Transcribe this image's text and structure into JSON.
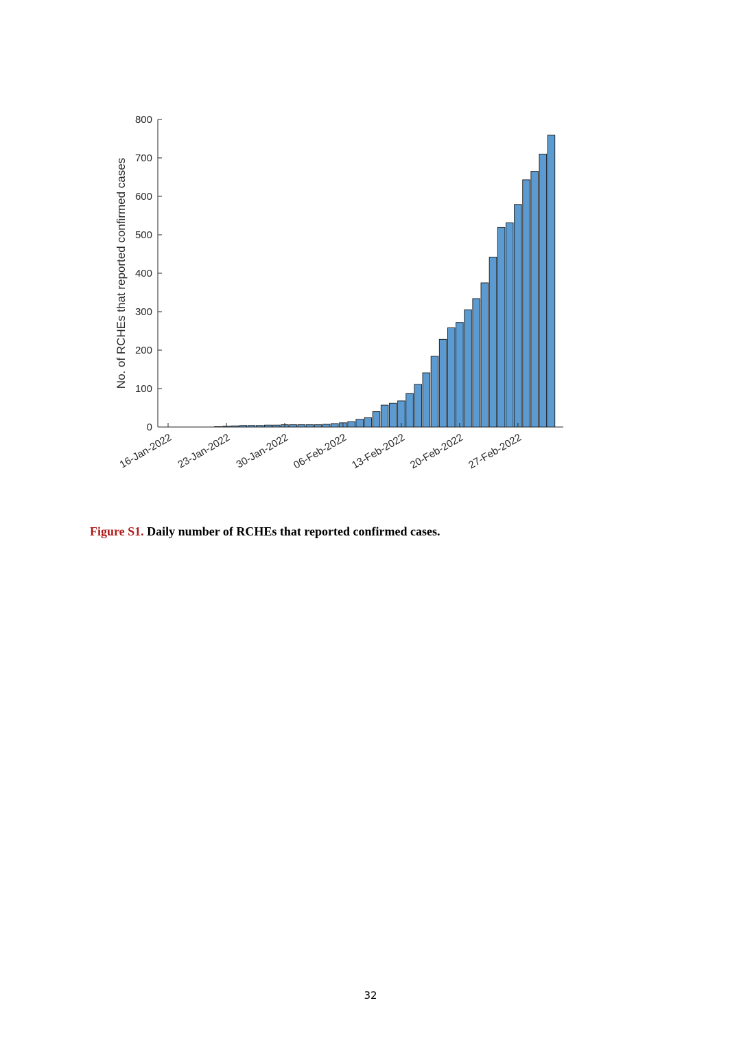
{
  "chart_data": {
    "type": "bar",
    "ylabel": "No. of RCHEs that reported confirmed cases",
    "categories": [
      "16-Jan-2022",
      null,
      null,
      null,
      null,
      null,
      null,
      "23-Jan-2022",
      null,
      null,
      null,
      null,
      null,
      null,
      "30-Jan-2022",
      null,
      null,
      null,
      null,
      null,
      null,
      "06-Feb-2022",
      null,
      null,
      null,
      null,
      null,
      null,
      "13-Feb-2022",
      null,
      null,
      null,
      null,
      null,
      null,
      "20-Feb-2022",
      null,
      null,
      null,
      null,
      null,
      null,
      "27-Feb-2022",
      null,
      null,
      null,
      null
    ],
    "values": [
      0,
      0,
      0,
      0,
      0,
      0,
      1,
      2,
      3,
      4,
      4,
      4,
      5,
      5,
      6,
      6,
      6,
      6,
      6,
      7,
      9,
      11,
      14,
      20,
      24,
      40,
      57,
      62,
      68,
      87,
      111,
      141,
      184,
      228,
      258,
      272,
      305,
      334,
      375,
      442,
      519,
      531,
      579,
      643,
      665,
      710,
      759
    ],
    "color": "#5b9bd1",
    "ylim": [
      0,
      800
    ],
    "yticks": [
      0,
      100,
      200,
      300,
      400,
      500,
      600,
      700,
      800
    ]
  },
  "caption": {
    "label": "Figure S1.",
    "text": "Daily number of RCHEs that reported confirmed cases."
  },
  "page_number": "32"
}
